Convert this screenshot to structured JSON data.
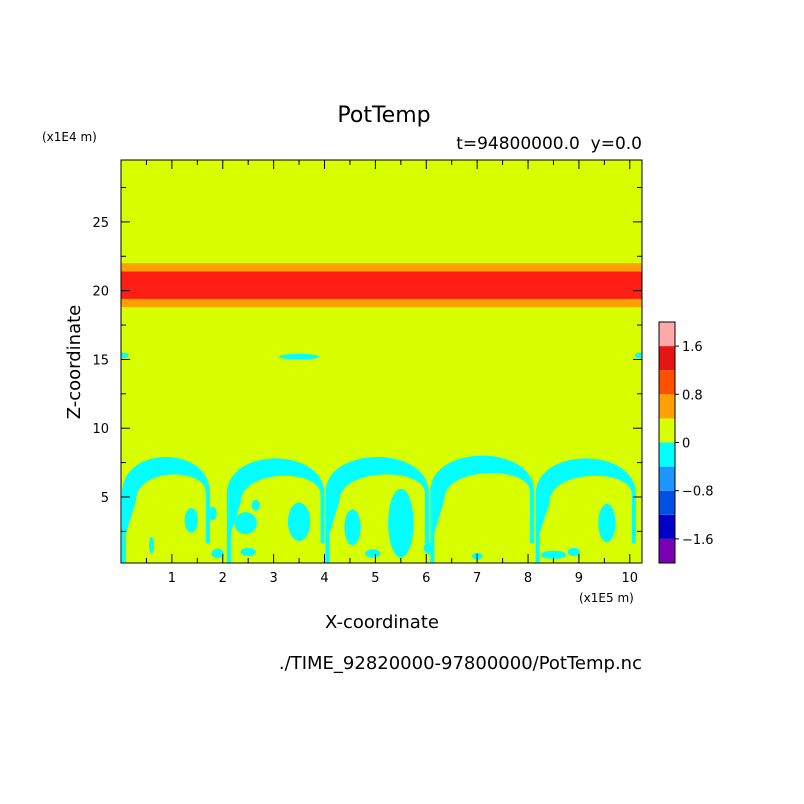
{
  "chart_data": {
    "type": "heatmap",
    "title": "PotTemp",
    "subtitle": "t=94800000.0  y=0.0",
    "xlabel": "X-coordinate",
    "ylabel": "Z-coordinate",
    "x_unit": "(x1E5 m)",
    "y_unit": "(x1E4 m)",
    "footer": "./TIME_92820000-97800000/PotTemp.nc",
    "xlim": [
      0,
      10.24
    ],
    "ylim": [
      0.2,
      29.5
    ],
    "x_ticks": [
      1,
      2,
      3,
      4,
      5,
      6,
      7,
      8,
      9,
      10
    ],
    "y_ticks": [
      5,
      10,
      15,
      20,
      25
    ],
    "grid": false,
    "colorbar": {
      "levels": [
        -2.0,
        -1.6,
        -1.2,
        -0.8,
        -0.4,
        0,
        0.4,
        0.8,
        1.2,
        1.6,
        2.0
      ],
      "labels": [
        -1.6,
        -0.8,
        0,
        0.8,
        1.6
      ],
      "colors": [
        "#7a00b4",
        "#0000c8",
        "#0050e6",
        "#1e96ff",
        "#00ffff",
        "#d7ff00",
        "#ffa000",
        "#ff5000",
        "#e61414",
        "#ffaaaa"
      ],
      "placement": "right"
    },
    "background_level_color": "#d7ff00",
    "layers": [
      {
        "z_range": [
          18.8,
          19.4
        ],
        "color": "#ffa000"
      },
      {
        "z_range": [
          19.4,
          21.4
        ],
        "color": "#ff1e14"
      },
      {
        "z_range": [
          21.4,
          22.0
        ],
        "color": "#ffa000"
      }
    ],
    "arches": [
      {
        "x_start": 0.02,
        "x_end": 1.75,
        "top": 8.2
      },
      {
        "x_start": 2.08,
        "x_end": 4.0,
        "top": 8.1
      },
      {
        "x_start": 4.02,
        "x_end": 6.05,
        "top": 8.2
      },
      {
        "x_start": 6.08,
        "x_end": 8.12,
        "top": 8.3
      },
      {
        "x_start": 8.15,
        "x_end": 10.12,
        "top": 8.1
      }
    ],
    "blobs": [
      {
        "x": 1.38,
        "z": 3.3,
        "rx": 0.13,
        "rz": 0.9
      },
      {
        "x": 1.8,
        "z": 3.8,
        "rx": 0.08,
        "rz": 0.5
      },
      {
        "x": 2.45,
        "z": 3.1,
        "rx": 0.22,
        "rz": 0.8
      },
      {
        "x": 2.65,
        "z": 4.4,
        "rx": 0.08,
        "rz": 0.4
      },
      {
        "x": 3.5,
        "z": 3.2,
        "rx": 0.22,
        "rz": 1.4
      },
      {
        "x": 4.55,
        "z": 2.8,
        "rx": 0.16,
        "rz": 1.3
      },
      {
        "x": 5.5,
        "z": 3.1,
        "rx": 0.25,
        "rz": 2.5
      },
      {
        "x": 9.55,
        "z": 3.1,
        "rx": 0.17,
        "rz": 1.4
      },
      {
        "x": 0.6,
        "z": 1.5,
        "rx": 0.05,
        "rz": 0.6
      },
      {
        "x": 1.9,
        "z": 0.9,
        "rx": 0.12,
        "rz": 0.35
      },
      {
        "x": 2.5,
        "z": 1.0,
        "rx": 0.15,
        "rz": 0.3
      },
      {
        "x": 4.95,
        "z": 0.9,
        "rx": 0.15,
        "rz": 0.3
      },
      {
        "x": 7.0,
        "z": 0.7,
        "rx": 0.1,
        "rz": 0.25
      },
      {
        "x": 6.05,
        "z": 1.3,
        "rx": 0.1,
        "rz": 0.4
      },
      {
        "x": 8.5,
        "z": 0.8,
        "rx": 0.25,
        "rz": 0.3
      },
      {
        "x": 8.9,
        "z": 1.0,
        "rx": 0.12,
        "rz": 0.3
      },
      {
        "x": 3.5,
        "z": 15.2,
        "rx": 0.4,
        "rz": 0.2
      },
      {
        "x": 0.05,
        "z": 15.3,
        "rx": 0.1,
        "rz": 0.2
      },
      {
        "x": 10.2,
        "z": 15.3,
        "rx": 0.1,
        "rz": 0.2
      }
    ]
  }
}
